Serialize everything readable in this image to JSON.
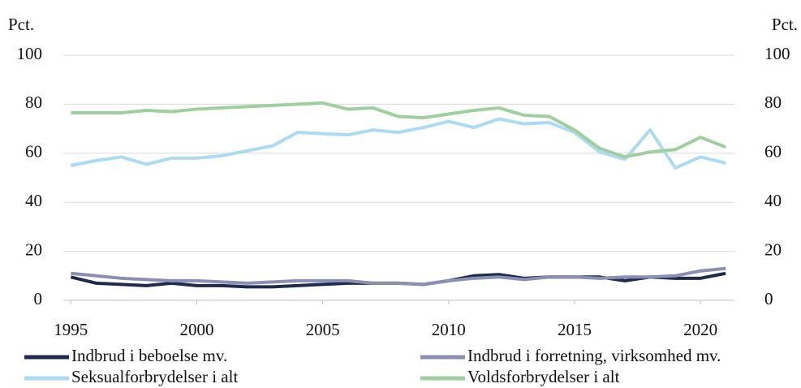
{
  "chart_data": {
    "type": "line",
    "y_label": "Pct.",
    "y2_label": "Pct.",
    "x": [
      1995,
      1996,
      1997,
      1998,
      1999,
      2000,
      2001,
      2002,
      2003,
      2004,
      2005,
      2006,
      2007,
      2008,
      2009,
      2010,
      2011,
      2012,
      2013,
      2014,
      2015,
      2016,
      2017,
      2018,
      2019,
      2020,
      2021
    ],
    "xlim": [
      1994.7,
      2021.35
    ],
    "xticks": [
      1995,
      2000,
      2005,
      2010,
      2015,
      2020
    ],
    "ylim": [
      0,
      100
    ],
    "yticks": [
      0,
      20,
      40,
      60,
      80,
      100
    ],
    "y2lim": [
      0,
      100
    ],
    "y2ticks": [
      0,
      20,
      40,
      60,
      80,
      100
    ],
    "grid": true,
    "series": [
      {
        "name": "Indbrud i beboelse mv.",
        "color": "#1f2b4d",
        "values": [
          9.5,
          7,
          6.5,
          6,
          7,
          6,
          6,
          5.5,
          5.5,
          6,
          6.5,
          7,
          7,
          7,
          6.5,
          8,
          10,
          10.5,
          9,
          9.5,
          9.5,
          9.5,
          8,
          9.5,
          9,
          9,
          11
        ]
      },
      {
        "name": "Indbrud i forretning, virksomhed mv.",
        "color": "#8a8fb3",
        "values": [
          11,
          10,
          9,
          8.5,
          8,
          8,
          7.5,
          7,
          7.5,
          8,
          8,
          8,
          7,
          7,
          6.5,
          8,
          9,
          9.5,
          8.5,
          9.5,
          9.5,
          9,
          9.5,
          9.5,
          10,
          12,
          13
        ]
      },
      {
        "name": "Seksualforbrydelser i alt",
        "color": "#acdaf2",
        "values": [
          55,
          57,
          58.5,
          55.5,
          58,
          58,
          59,
          61,
          63,
          68.5,
          68,
          67.5,
          69.5,
          68.5,
          70.5,
          73,
          70.5,
          74,
          72,
          72.5,
          68.5,
          60.5,
          57.5,
          69.5,
          54,
          58.5,
          56
        ]
      },
      {
        "name": "Voldsforbrydelser i alt",
        "color": "#9fcf9f",
        "values": [
          76.5,
          76.5,
          76.5,
          77.5,
          77,
          78,
          78.5,
          79,
          79.5,
          80,
          80.5,
          78,
          78.5,
          75,
          74.5,
          76,
          77.5,
          78.5,
          75.5,
          75,
          69.5,
          62,
          58.5,
          60.5,
          61.5,
          66.5,
          62.5
        ]
      }
    ]
  }
}
